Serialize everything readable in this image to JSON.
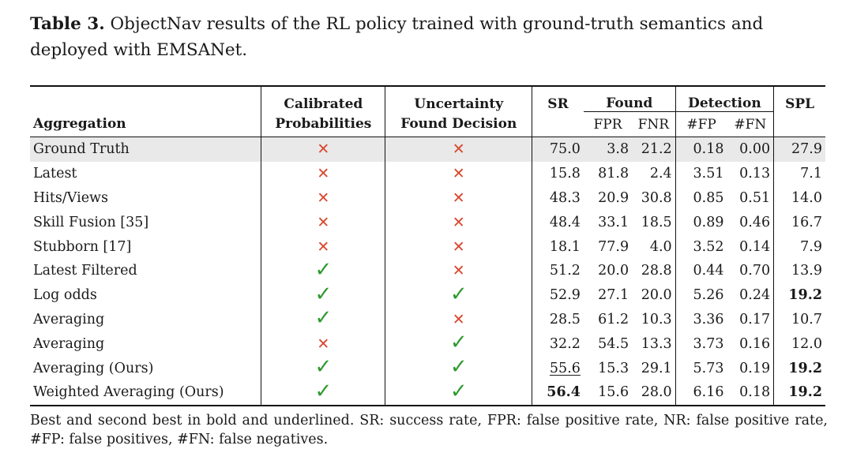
{
  "caption": {
    "label": "Table 3.",
    "text": " ObjectNav results of the RL policy trained with ground-truth semantics and deployed with EMSANet."
  },
  "headers": {
    "aggregation": "Aggregation",
    "calibrated_1": "Calibrated",
    "calibrated_2": "Probabilities",
    "uncertainty_1": "Uncertainty",
    "uncertainty_2": "Found Decision",
    "sr": "SR",
    "found": "Found",
    "fpr": "FPR",
    "fnr": "FNR",
    "detection": "Detection",
    "nfp": "#FP",
    "nfn": "#FN",
    "spl": "SPL"
  },
  "rows": [
    {
      "aggregation": "Ground Truth",
      "calibrated": "cross",
      "uncertainty": "cross",
      "sr": "75.0",
      "fpr": "3.8",
      "fnr": "21.2",
      "nfp": "0.18",
      "nfn": "0.00",
      "spl": "27.9"
    },
    {
      "aggregation": "Latest",
      "calibrated": "cross",
      "uncertainty": "cross",
      "sr": "15.8",
      "fpr": "81.8",
      "fnr": "2.4",
      "nfp": "3.51",
      "nfn": "0.13",
      "spl": "7.1"
    },
    {
      "aggregation": "Hits/Views",
      "calibrated": "cross",
      "uncertainty": "cross",
      "sr": "48.3",
      "fpr": "20.9",
      "fnr": "30.8",
      "nfp": "0.85",
      "nfn": "0.51",
      "spl": "14.0"
    },
    {
      "aggregation": "Skill Fusion [35]",
      "calibrated": "cross",
      "uncertainty": "cross",
      "sr": "48.4",
      "fpr": "33.1",
      "fnr": "18.5",
      "nfp": "0.89",
      "nfn": "0.46",
      "spl": "16.7"
    },
    {
      "aggregation": "Stubborn [17]",
      "calibrated": "cross",
      "uncertainty": "cross",
      "sr": "18.1",
      "fpr": "77.9",
      "fnr": "4.0",
      "nfp": "3.52",
      "nfn": "0.14",
      "spl": "7.9"
    },
    {
      "aggregation": "Latest Filtered",
      "calibrated": "check",
      "uncertainty": "cross",
      "sr": "51.2",
      "fpr": "20.0",
      "fnr": "28.8",
      "nfp": "0.44",
      "nfn": "0.70",
      "spl": "13.9"
    },
    {
      "aggregation": "Log odds",
      "calibrated": "check",
      "uncertainty": "check",
      "sr": "52.9",
      "fpr": "27.1",
      "fnr": "20.0",
      "nfp": "5.26",
      "nfn": "0.24",
      "spl": "19.2"
    },
    {
      "aggregation": "Averaging",
      "calibrated": "check",
      "uncertainty": "cross",
      "sr": "28.5",
      "fpr": "61.2",
      "fnr": "10.3",
      "nfp": "3.36",
      "nfn": "0.17",
      "spl": "10.7"
    },
    {
      "aggregation": "Averaging",
      "calibrated": "cross",
      "uncertainty": "check",
      "sr": "32.2",
      "fpr": "54.5",
      "fnr": "13.3",
      "nfp": "3.73",
      "nfn": "0.16",
      "spl": "12.0"
    },
    {
      "aggregation": "Averaging (Ours)",
      "calibrated": "check",
      "uncertainty": "check",
      "sr": "55.6",
      "fpr": "15.3",
      "fnr": "29.1",
      "nfp": "5.73",
      "nfn": "0.19",
      "spl": "19.2"
    },
    {
      "aggregation": "Weighted Averaging (Ours)",
      "calibrated": "check",
      "uncertainty": "check",
      "sr": "56.4",
      "fpr": "15.6",
      "fnr": "28.0",
      "nfp": "6.16",
      "nfn": "0.18",
      "spl": "19.2"
    }
  ],
  "footnote": "Best and second best in bold and underlined. SR: success rate, FPR: false positive rate, NR: false positive rate, #FP: false positives, #FN: false negatives.",
  "colors": {
    "cross": "#d9482f",
    "check": "#2f9a2f",
    "highlight_row": "#e9e9e9"
  }
}
